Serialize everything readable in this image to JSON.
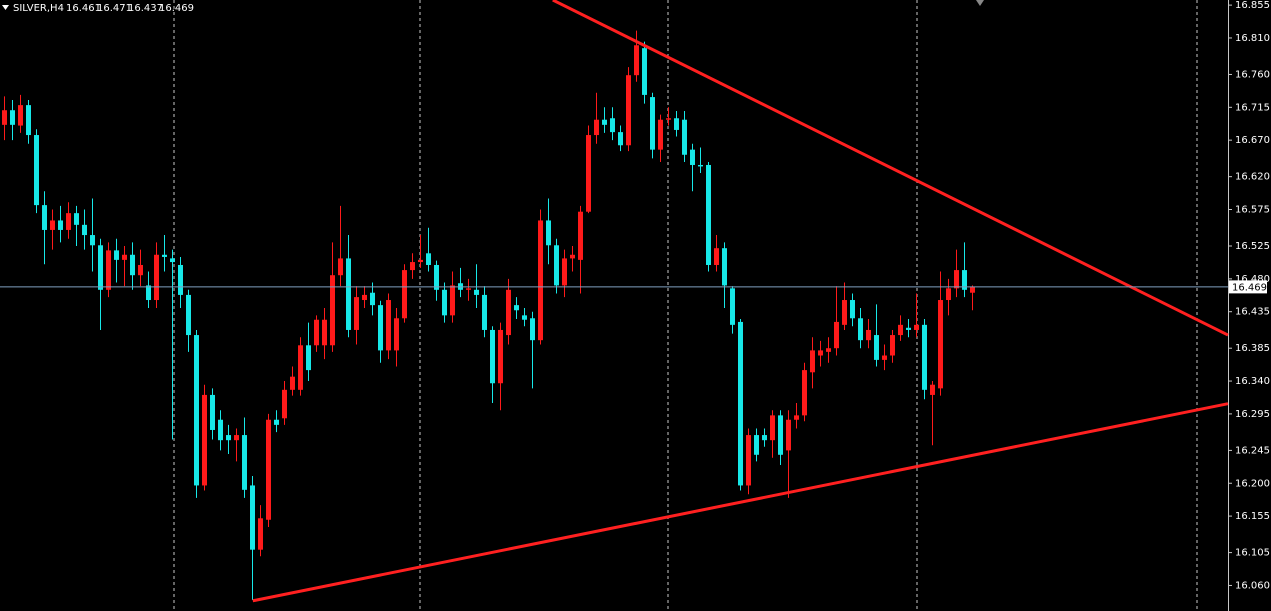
{
  "chart_data": {
    "type": "candlestick",
    "symbol": "SILVER,H4",
    "colors": {
      "up": "#ff1a1a",
      "down": "#17e8e8",
      "trendline": "#ff2020",
      "price_line": "#7f9fbf"
    },
    "ylim": [
      16.025,
      16.862
    ],
    "yticks": [
      16.855,
      {
        "value": 16.81,
        "label": "16.810"
      },
      {
        "value": 16.76,
        "label": "16.760"
      },
      16.715,
      {
        "value": 16.67,
        "label": "16.670"
      },
      {
        "value": 16.62,
        "label": "16.620"
      },
      16.575,
      16.525,
      {
        "value": 16.48,
        "label": "16.480"
      },
      16.435,
      16.385,
      {
        "value": 16.34,
        "label": "16.340"
      },
      16.295,
      16.245,
      {
        "value": 16.2,
        "label": "16.200"
      },
      16.155,
      16.105,
      {
        "value": 16.06,
        "label": "16.060"
      }
    ],
    "open": [
      16.691,
      16.711,
      16.69,
      16.718,
      16.677,
      16.581,
      16.547,
      16.56,
      16.547,
      16.57,
      16.554,
      16.54,
      16.526,
      16.465,
      16.519,
      16.506,
      16.513,
      16.485,
      16.471,
      16.451,
      16.513,
      16.508,
      16.499,
      16.458,
      16.403,
      16.197,
      16.321,
      16.287,
      16.266,
      16.259,
      16.266,
      16.197,
      16.109,
      16.15,
      16.287,
      16.289,
      16.328,
      16.328,
      16.389,
      16.389,
      16.389,
      16.389,
      16.485,
      16.508,
      16.41,
      16.451,
      16.461,
      16.444,
      16.382,
      16.382,
      16.426,
      16.492,
      16.503,
      16.515,
      16.499,
      16.465,
      16.43,
      16.474,
      16.465,
      16.465,
      16.458,
      16.41,
      16.337,
      16.403,
      16.444,
      16.43,
      16.426,
      16.396,
      16.56,
      16.526,
      16.471,
      16.508,
      16.506,
      16.572,
      16.677,
      16.698,
      16.7,
      16.681,
      16.663,
      16.759,
      16.796,
      16.729,
      16.657,
      16.698,
      16.7,
      16.698,
      16.657,
      16.636,
      16.636,
      16.499,
      16.522,
      16.467,
      16.421,
      16.197,
      16.266,
      16.266,
      16.259,
      16.293,
      16.245,
      16.287,
      16.293,
      16.352,
      16.375,
      16.38,
      16.385,
      16.417,
      16.451,
      16.426,
      16.396,
      16.403,
      16.369,
      16.375,
      16.403,
      16.413,
      16.41,
      16.417,
      16.321,
      16.33,
      16.451,
      16.467,
      16.492,
      16.461
    ],
    "high": [
      16.73,
      16.725,
      16.732,
      16.725,
      16.685,
      16.6,
      16.575,
      16.58,
      16.585,
      16.58,
      16.575,
      16.59,
      16.535,
      16.53,
      16.535,
      16.525,
      16.53,
      16.52,
      16.49,
      16.53,
      16.54,
      16.52,
      16.51,
      16.465,
      16.41,
      16.335,
      16.33,
      16.3,
      16.28,
      16.275,
      16.29,
      16.21,
      16.17,
      16.295,
      16.3,
      16.34,
      16.36,
      16.4,
      16.42,
      16.43,
      16.44,
      16.53,
      16.58,
      16.54,
      16.47,
      16.47,
      16.475,
      16.45,
      16.46,
      16.44,
      16.5,
      16.515,
      16.54,
      16.55,
      16.505,
      16.475,
      16.49,
      16.495,
      16.48,
      16.5,
      16.47,
      16.415,
      16.42,
      16.48,
      16.455,
      16.44,
      16.435,
      16.575,
      16.59,
      16.535,
      16.52,
      16.525,
      16.58,
      16.69,
      16.735,
      16.715,
      16.715,
      16.69,
      16.77,
      16.82,
      16.805,
      16.735,
      16.705,
      16.715,
      16.71,
      16.71,
      16.665,
      16.66,
      16.64,
      16.54,
      16.53,
      16.47,
      16.425,
      16.275,
      16.275,
      16.275,
      16.3,
      16.3,
      16.3,
      16.31,
      16.365,
      16.4,
      16.395,
      16.4,
      16.47,
      16.475,
      16.46,
      16.44,
      16.425,
      16.445,
      16.39,
      16.41,
      16.43,
      16.425,
      16.46,
      16.425,
      16.34,
      16.49,
      16.48,
      16.52,
      16.53,
      16.471
    ],
    "low": [
      16.67,
      16.67,
      16.68,
      16.665,
      16.57,
      16.5,
      16.52,
      16.53,
      16.535,
      16.525,
      16.52,
      16.49,
      16.41,
      16.455,
      16.475,
      16.47,
      16.465,
      16.47,
      16.44,
      16.44,
      16.49,
      16.26,
      16.44,
      16.38,
      16.18,
      16.19,
      16.26,
      16.245,
      16.24,
      16.23,
      16.18,
      16.04,
      16.1,
      16.14,
      16.27,
      16.28,
      16.32,
      16.32,
      16.34,
      16.38,
      16.37,
      16.38,
      16.47,
      16.4,
      16.39,
      16.44,
      16.43,
      16.365,
      16.37,
      16.36,
      16.42,
      16.48,
      16.495,
      16.49,
      16.45,
      16.42,
      16.42,
      16.455,
      16.45,
      16.44,
      16.4,
      16.31,
      16.3,
      16.39,
      16.425,
      16.415,
      16.33,
      16.39,
      16.5,
      16.46,
      16.455,
      16.49,
      16.46,
      16.57,
      16.665,
      16.68,
      16.67,
      16.655,
      16.655,
      16.75,
      16.72,
      16.645,
      16.64,
      16.69,
      16.675,
      16.64,
      16.6,
      16.625,
      16.49,
      16.49,
      16.44,
      16.405,
      16.19,
      16.185,
      16.23,
      16.25,
      16.235,
      16.225,
      16.18,
      16.275,
      16.285,
      16.33,
      16.36,
      16.365,
      16.375,
      16.41,
      16.415,
      16.385,
      16.385,
      16.36,
      16.355,
      16.365,
      16.395,
      16.4,
      16.4,
      16.315,
      16.252,
      16.32,
      16.43,
      16.455,
      16.455,
      16.437
    ],
    "close": [
      16.711,
      16.691,
      16.718,
      16.677,
      16.581,
      16.547,
      16.56,
      16.547,
      16.57,
      16.554,
      16.54,
      16.526,
      16.465,
      16.519,
      16.506,
      16.513,
      16.485,
      16.499,
      16.451,
      16.513,
      16.51,
      16.503,
      16.458,
      16.403,
      16.197,
      16.321,
      16.273,
      16.259,
      16.259,
      16.266,
      16.191,
      16.109,
      16.152,
      16.287,
      16.28,
      16.328,
      16.346,
      16.389,
      16.355,
      16.424,
      16.424,
      16.485,
      16.508,
      16.41,
      16.455,
      16.458,
      16.444,
      16.382,
      16.451,
      16.426,
      16.492,
      16.503,
      16.506,
      16.499,
      16.465,
      16.43,
      16.471,
      16.465,
      16.467,
      16.458,
      16.41,
      16.337,
      16.41,
      16.465,
      16.437,
      16.424,
      16.396,
      16.56,
      16.526,
      16.471,
      16.508,
      16.513,
      16.572,
      16.677,
      16.698,
      16.691,
      16.681,
      16.663,
      16.759,
      16.8,
      16.732,
      16.657,
      16.698,
      16.7,
      16.684,
      16.65,
      16.636,
      16.634,
      16.499,
      16.522,
      16.471,
      16.417,
      16.197,
      16.266,
      16.239,
      16.259,
      16.293,
      16.239,
      16.287,
      16.293,
      16.355,
      16.382,
      16.382,
      16.385,
      16.421,
      16.451,
      16.426,
      16.396,
      16.41,
      16.369,
      16.375,
      16.403,
      16.417,
      16.41,
      16.417,
      16.328,
      16.335,
      16.451,
      16.467,
      16.492,
      16.465,
      16.469
    ],
    "trendlines": [
      {
        "x": [
          68.6,
          153
        ],
        "y": [
          16.862,
          16.403
        ]
      },
      {
        "x": [
          31.1,
          153
        ],
        "y": [
          16.039,
          16.309
        ]
      }
    ]
  }
}
